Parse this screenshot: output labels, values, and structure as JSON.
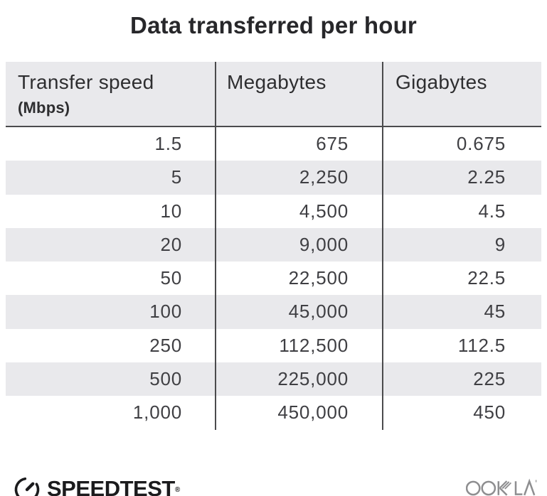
{
  "title": "Data transferred per hour",
  "chart_data": {
    "type": "table",
    "title": "Data transferred per hour",
    "columns": [
      "Transfer speed (Mbps)",
      "Megabytes",
      "Gigabytes"
    ],
    "rows": [
      {
        "transfer_speed_mbps": "1.5",
        "megabytes": "675",
        "gigabytes": "0.675"
      },
      {
        "transfer_speed_mbps": "5",
        "megabytes": "2,250",
        "gigabytes": "2.25"
      },
      {
        "transfer_speed_mbps": "10",
        "megabytes": "4,500",
        "gigabytes": "4.5"
      },
      {
        "transfer_speed_mbps": "20",
        "megabytes": "9,000",
        "gigabytes": "9"
      },
      {
        "transfer_speed_mbps": "50",
        "megabytes": "22,500",
        "gigabytes": "22.5"
      },
      {
        "transfer_speed_mbps": "100",
        "megabytes": "45,000",
        "gigabytes": "45"
      },
      {
        "transfer_speed_mbps": "250",
        "megabytes": "112,500",
        "gigabytes": "112.5"
      },
      {
        "transfer_speed_mbps": "500",
        "megabytes": "225,000",
        "gigabytes": "225"
      },
      {
        "transfer_speed_mbps": "1,000",
        "megabytes": "450,000",
        "gigabytes": "450"
      }
    ]
  },
  "table": {
    "columns": [
      {
        "label": "Transfer speed",
        "sublabel": "(Mbps)"
      },
      {
        "label": "Megabytes",
        "sublabel": ""
      },
      {
        "label": "Gigabytes",
        "sublabel": ""
      }
    ],
    "cells": [
      [
        "1.5",
        "675",
        "0.675"
      ],
      [
        "5",
        "2,250",
        "2.25"
      ],
      [
        "10",
        "4,500",
        "4.5"
      ],
      [
        "20",
        "9,000",
        "9"
      ],
      [
        "50",
        "22,500",
        "22.5"
      ],
      [
        "100",
        "45,000",
        "45"
      ],
      [
        "250",
        "112,500",
        "112.5"
      ],
      [
        "500",
        "225,000",
        "225"
      ],
      [
        "1,000",
        "450,000",
        "450"
      ]
    ]
  },
  "footer": {
    "speedtest_label": "SPEEDTEST",
    "speedtest_trademark": "®",
    "ookla_label": "OOKLA"
  },
  "colors": {
    "header_bg": "#e9e9ec",
    "row_alt_bg": "#e9e9ec",
    "divider": "#4b4b4d",
    "text": "#3f3f43",
    "title_text": "#27272a",
    "ookla_gray": "#8e8e90",
    "logo_dark": "#1b1b1d"
  }
}
